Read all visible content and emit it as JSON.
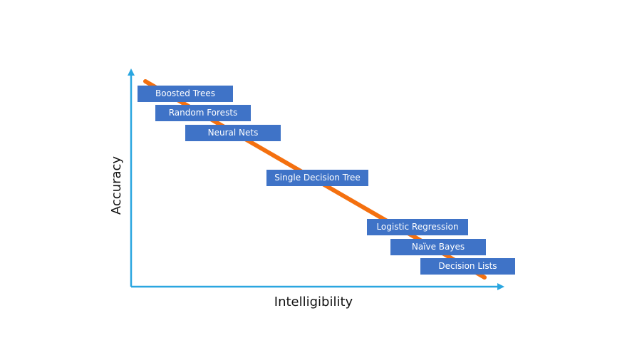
{
  "axes": {
    "y_label": "Accuracy",
    "x_label": "Intelligibility"
  },
  "colors": {
    "axis": "#2aa6e0",
    "trend_line": "#f4700f",
    "box_fill": "#3f73c7",
    "box_text": "#ffffff"
  },
  "models": [
    "Boosted Trees",
    "Random Forests",
    "Neural Nets",
    "Single Decision Tree",
    "Logistic Regression",
    "Naïve Bayes",
    "Decision Lists"
  ]
}
